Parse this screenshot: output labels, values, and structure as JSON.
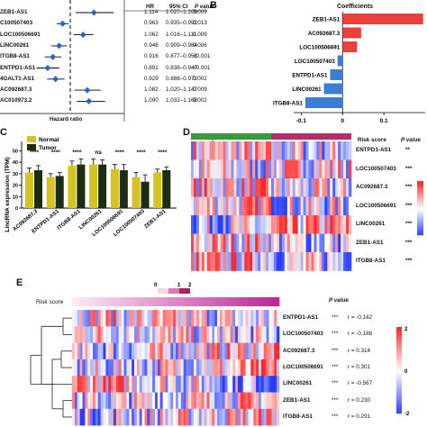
{
  "panel_b_letter": "B",
  "panel_c_letter": "C",
  "panel_d_letter": "D",
  "panel_e_letter": "E",
  "panel_a": {
    "genes": [
      "ZEB1-AS1",
      "C100507403",
      "LOC100506691",
      "LINC00261",
      "ITGB8-AS1",
      "ENTPD1-AS1",
      "4GALT1-AS1",
      "AC092687.3",
      "AC010973.2"
    ],
    "headers": {
      "hr": "HR",
      "ci": "95% CI",
      "p": "P value"
    },
    "hr": [
      "1.114",
      "0.963",
      "1.062",
      "0.946",
      "0.916",
      "0.891",
      "0.929",
      "1.082",
      "1.090"
    ],
    "ci": [
      "1.027–1.209",
      "0.935–0.992",
      "1.016–1.111",
      "0.909–0.984",
      "0.877–0.958",
      "0.838–0.947",
      "0.888–0.972",
      "1.020–1.147",
      "1.032–1.168"
    ],
    "p": [
      "0.009",
      "0.013",
      "0.009",
      "0.006",
      "<0.001",
      "<0.001",
      "0.002",
      "0.009",
      "0.002"
    ],
    "xlabel": "Hazard ratio"
  },
  "panel_b": {
    "title": "Coefficients",
    "ticks": [
      "-0.1",
      "0",
      "0.1"
    ],
    "colors": {
      "pos": "#e8413a",
      "neg": "#3a7fd5"
    },
    "chart_data": {
      "type": "bar",
      "categories": [
        "ZEB1-AS1",
        "AC092687.3",
        "LOC100506691",
        "LOC100507403",
        "ENTPD1-AS1",
        "LINC00261",
        "ITGB8-AS1"
      ],
      "values": [
        0.195,
        0.045,
        0.035,
        -0.012,
        -0.03,
        -0.045,
        -0.09
      ],
      "xlim": [
        -0.14,
        0.2
      ]
    }
  },
  "panel_c": {
    "ylabel": "LincRNA expression (TPM)",
    "legend": [
      {
        "label": "Normal",
        "color": "#d4c320"
      },
      {
        "label": "Tumor",
        "color": "#1c2d12"
      }
    ],
    "sig": [
      "****",
      "****",
      "****",
      "ns",
      "****",
      "****",
      "****"
    ],
    "ticks": [
      "0",
      "10",
      "20",
      "30",
      "40",
      "50"
    ],
    "chart_data": {
      "type": "bar",
      "categories": [
        "AC092687.3",
        "ENTPD1-AS1",
        "ITGB8-AS1",
        "LINC00261",
        "LOC100506691",
        "LOC100507403",
        "ZEB1-AS1"
      ],
      "series": [
        {
          "name": "Normal",
          "values": [
            31,
            27,
            37,
            38,
            34,
            27,
            31
          ]
        },
        {
          "name": "Tumor",
          "values": [
            33,
            28,
            38,
            38,
            33,
            23,
            33
          ]
        }
      ],
      "errors": [
        [
          4,
          4
        ],
        [
          3,
          3
        ],
        [
          4,
          5
        ],
        [
          5,
          4
        ],
        [
          4,
          5
        ],
        [
          4,
          6
        ],
        [
          3,
          3
        ]
      ],
      "ylim": [
        0,
        55
      ]
    }
  },
  "panel_d": {
    "high": "High risk",
    "low": "Low risk",
    "risk_score": "Risk score",
    "p_header": "P value",
    "rows": [
      {
        "gene": "ENTPD1-AS1",
        "p": "**"
      },
      {
        "gene": "LOC100507403",
        "p": "***"
      },
      {
        "gene": "AC092687.3",
        "p": "***"
      },
      {
        "gene": "LOC100506691",
        "p": "***"
      },
      {
        "gene": "LINC00261",
        "p": "***"
      },
      {
        "gene": "ZEB1-AS1",
        "p": "***"
      },
      {
        "gene": "ITGB8-AS1",
        "p": "***"
      }
    ]
  },
  "panel_e": {
    "risk_score": "Risk score",
    "p_header": "P value",
    "scale_ticks": [
      "0",
      "1",
      "2"
    ],
    "legend_ticks": [
      "2",
      "0",
      "-2"
    ],
    "rows": [
      {
        "gene": "ENTPD1-AS1",
        "p": "***",
        "r": "r = -0.142"
      },
      {
        "gene": "LOC100507403",
        "p": "***",
        "r": "r = -0.188"
      },
      {
        "gene": "AC092687.3",
        "p": "***",
        "r": "r = 0.314"
      },
      {
        "gene": "LOC100506691",
        "p": "***",
        "r": "r = 0.301"
      },
      {
        "gene": "LINC00261",
        "p": "***",
        "r": "r = -0.567"
      },
      {
        "gene": "ZEB1-AS1",
        "p": "***",
        "r": "r = 0.230"
      },
      {
        "gene": "ITGB8-AS1",
        "p": "***",
        "r": "r = 0.291"
      }
    ]
  }
}
